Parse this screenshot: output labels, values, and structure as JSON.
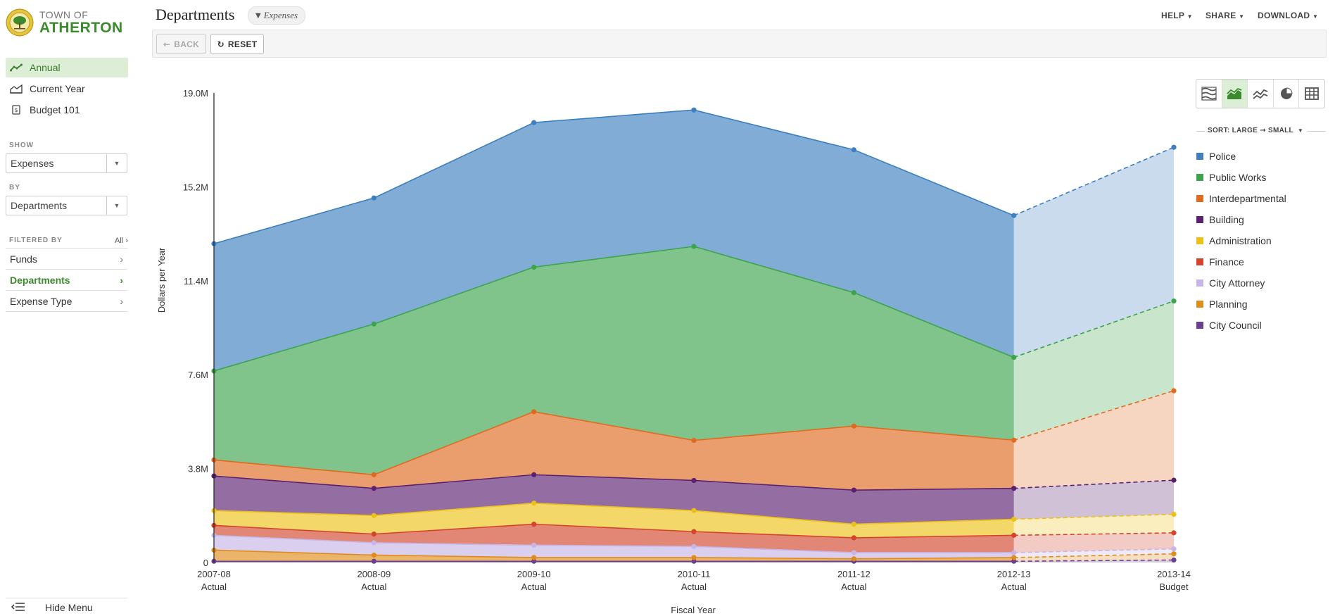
{
  "logo": {
    "top": "TOWN OF",
    "name": "ATHERTON"
  },
  "nav": [
    {
      "label": "Annual",
      "icon": "line-chart-icon",
      "active": true
    },
    {
      "label": "Current Year",
      "icon": "area-chart-icon",
      "active": false
    },
    {
      "label": "Budget 101",
      "icon": "document-icon",
      "active": false
    }
  ],
  "show": {
    "label": "SHOW",
    "value": "Expenses"
  },
  "by": {
    "label": "BY",
    "value": "Departments"
  },
  "filtered_by": {
    "label": "FILTERED BY",
    "all": "All"
  },
  "filters": [
    {
      "label": "Funds",
      "active": false
    },
    {
      "label": "Departments",
      "active": true
    },
    {
      "label": "Expense Type",
      "active": false
    }
  ],
  "hide_menu": "Hide Menu",
  "page": {
    "title": "Departments",
    "filter_pill": "Expenses"
  },
  "top_menu": {
    "help": "HELP",
    "share": "SHARE",
    "download": "DOWNLOAD"
  },
  "toolbar": {
    "back": "BACK",
    "reset": "RESET"
  },
  "view_buttons": [
    "stacked-layers-icon",
    "area-chart-icon",
    "line-chart-icon",
    "pie-chart-icon",
    "table-icon"
  ],
  "sort": {
    "label": "SORT: LARGE",
    "arrow": "→",
    "label2": "SMALL"
  },
  "colors": {
    "brand_green": "#3c8a2e",
    "active_bg": "#dcefd6"
  },
  "chart_data": {
    "type": "area",
    "stacked": true,
    "title": "",
    "xlabel": "Fiscal Year",
    "ylabel": "Dollars per Year",
    "ylim": [
      0,
      19.0
    ],
    "yticks": [
      "0",
      "3.8M",
      "7.6M",
      "11.4M",
      "15.2M",
      "19.0M"
    ],
    "categories": [
      [
        "2007-08",
        "Actual"
      ],
      [
        "2008-09",
        "Actual"
      ],
      [
        "2009-10",
        "Actual"
      ],
      [
        "2010-11",
        "Actual"
      ],
      [
        "2011-12",
        "Actual"
      ],
      [
        "2012-13",
        "Actual"
      ],
      [
        "2013-14",
        "Budget"
      ]
    ],
    "projected_from_index": 5,
    "series": [
      {
        "name": "City Council",
        "color": "#6b3f8f",
        "values": [
          0.05,
          0.05,
          0.05,
          0.05,
          0.05,
          0.05,
          0.1
        ]
      },
      {
        "name": "Planning",
        "color": "#e08c1c",
        "values": [
          0.45,
          0.25,
          0.15,
          0.15,
          0.1,
          0.15,
          0.25
        ]
      },
      {
        "name": "City Attorney",
        "color": "#c6b5e6",
        "values": [
          0.6,
          0.5,
          0.5,
          0.45,
          0.25,
          0.2,
          0.2
        ]
      },
      {
        "name": "Finance",
        "color": "#d2452c",
        "values": [
          0.4,
          0.35,
          0.85,
          0.6,
          0.6,
          0.7,
          0.65
        ]
      },
      {
        "name": "Administration",
        "color": "#ecc117",
        "values": [
          0.6,
          0.75,
          0.85,
          0.85,
          0.55,
          0.65,
          0.75
        ]
      },
      {
        "name": "Building",
        "color": "#5b2170",
        "values": [
          1.4,
          1.1,
          1.15,
          1.22,
          1.38,
          1.25,
          1.38
        ]
      },
      {
        "name": "Interdepartmental",
        "color": "#e06a1f",
        "values": [
          0.65,
          0.55,
          2.55,
          1.62,
          2.59,
          1.95,
          3.62
        ]
      },
      {
        "name": "Public Works",
        "color": "#3da44d",
        "values": [
          3.6,
          6.1,
          5.85,
          7.85,
          5.4,
          3.35,
          3.63
        ]
      },
      {
        "name": "Police",
        "color": "#3d7fbf",
        "values": [
          5.15,
          5.1,
          5.85,
          5.52,
          5.78,
          5.74,
          6.22
        ]
      }
    ]
  }
}
